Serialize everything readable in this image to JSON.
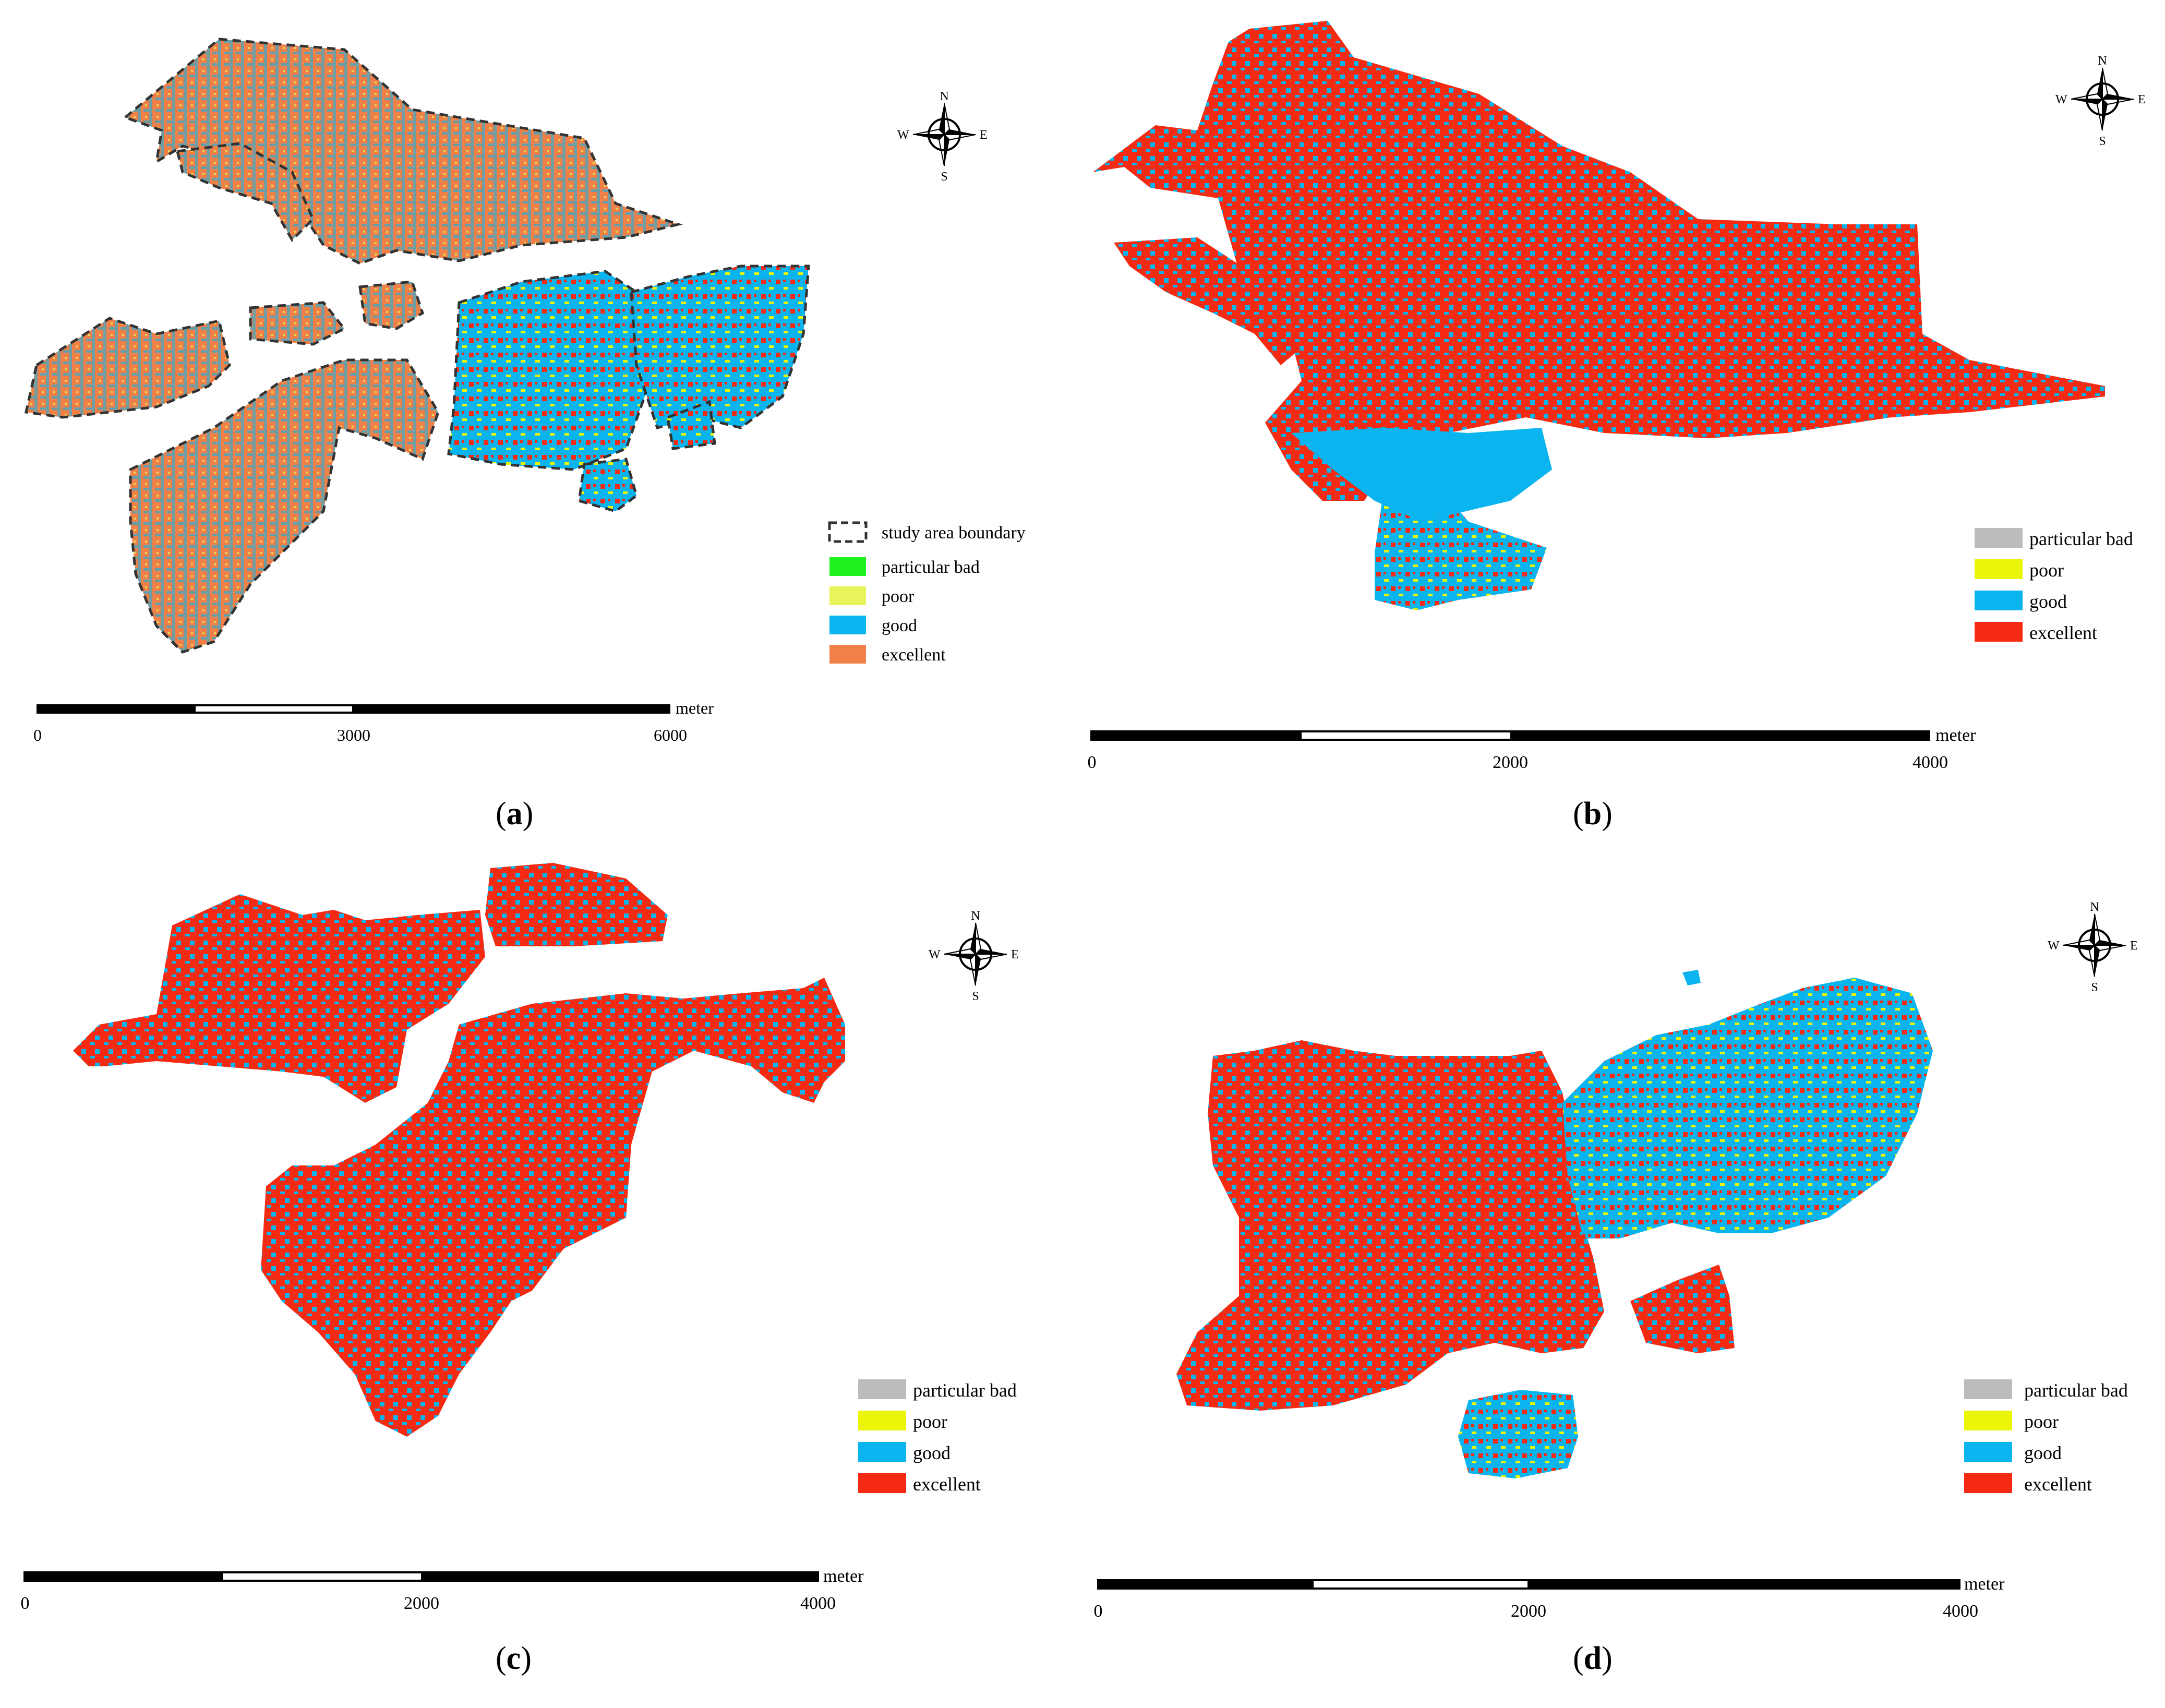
{
  "colors": {
    "good": "#0ab4ef",
    "excellent_a": "#f08048",
    "excellent": "#f52a12",
    "poor_a": "#e8f55a",
    "poor": "#eaf50a",
    "particular_bad_a": "#1ef01e",
    "particular_bad": "#bcbcbc",
    "boundary": "#333333"
  },
  "compass": {
    "n": "N",
    "s": "S",
    "e": "E",
    "w": "W"
  },
  "panels": [
    {
      "id": "a",
      "label_open": "(",
      "label_letter": "a",
      "label_close": ")",
      "legend": {
        "boundary": "study area boundary",
        "particular_bad": "particular bad",
        "poor": "poor",
        "good": "good",
        "excellent": "excellent"
      },
      "scale": {
        "unit": "meter",
        "ticks": [
          "0",
          "3000",
          "6000"
        ]
      }
    },
    {
      "id": "b",
      "label_open": "(",
      "label_letter": "b",
      "label_close": ")",
      "legend": {
        "particular_bad": "particular bad",
        "poor": "poor",
        "good": "good",
        "excellent": "excellent"
      },
      "scale": {
        "unit": "meter",
        "ticks": [
          "0",
          "2000",
          "4000"
        ]
      }
    },
    {
      "id": "c",
      "label_open": "(",
      "label_letter": "c",
      "label_close": ")",
      "legend": {
        "particular_bad": "particular bad",
        "poor": "poor",
        "good": "good",
        "excellent": "excellent"
      },
      "scale": {
        "unit": "meter",
        "ticks": [
          "0",
          "2000",
          "4000"
        ]
      }
    },
    {
      "id": "d",
      "label_open": "(",
      "label_letter": "d",
      "label_close": ")",
      "legend": {
        "particular_bad": "particular bad",
        "poor": "poor",
        "good": "good",
        "excellent": "excellent"
      },
      "scale": {
        "unit": "meter",
        "ticks": [
          "0",
          "2000",
          "4000"
        ]
      }
    }
  ]
}
